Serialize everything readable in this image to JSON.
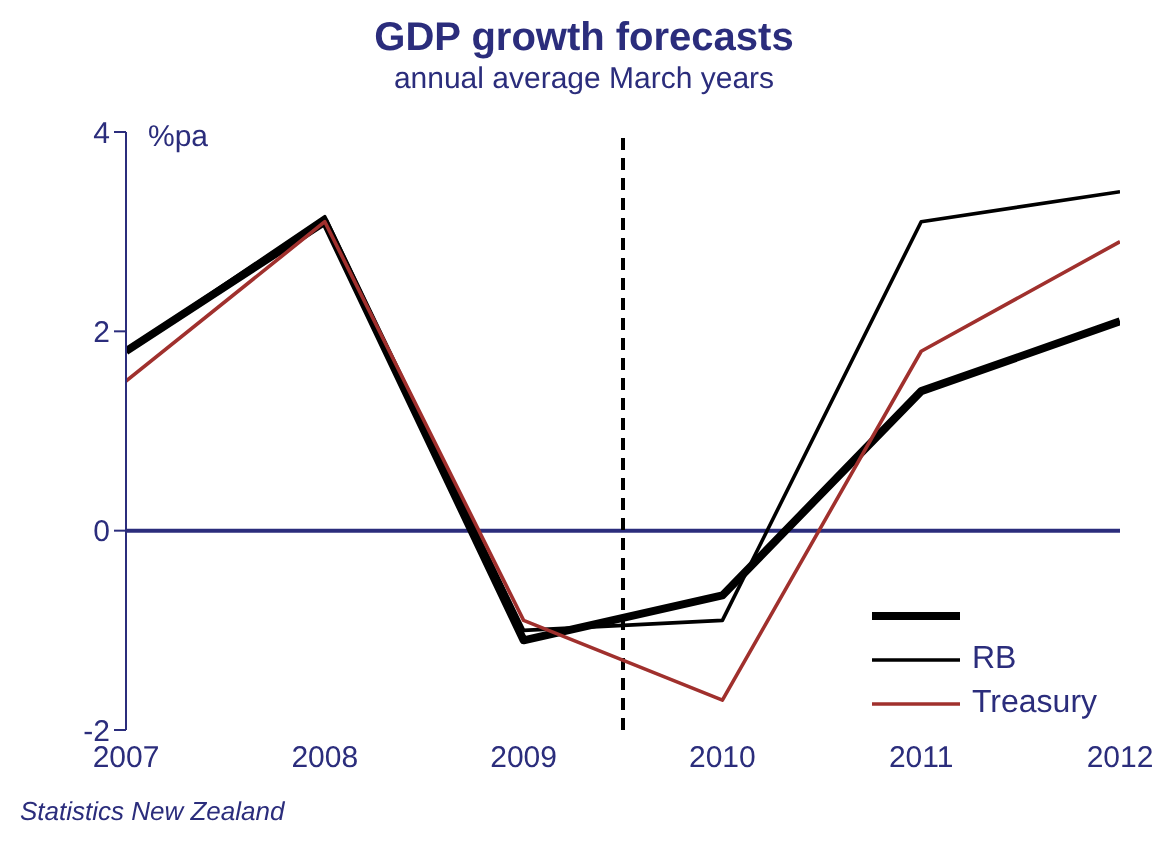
{
  "chart_data": {
    "type": "line",
    "title": "GDP growth forecasts",
    "subtitle": "annual average March years",
    "ylabel": "%pa",
    "annotations": [
      "Statistics New Zealand"
    ],
    "x": [
      2007,
      2008,
      2009,
      2010,
      2011,
      2012
    ],
    "xlim": [
      2007,
      2012
    ],
    "xticks": [
      2007,
      2008,
      2009,
      2010,
      2011,
      2012
    ],
    "ylim": [
      -2,
      4
    ],
    "yticks": [
      -2,
      0,
      2,
      4
    ],
    "grid": false,
    "legend": "bottom right",
    "marker": "none",
    "line_style": "solid",
    "ref_lines": [
      {
        "axis": "y",
        "value": 0,
        "color": "#2b2d7c",
        "line_style": "solid"
      },
      {
        "axis": "x",
        "value": 2009.5,
        "color": "#000000",
        "line_style": "dashed"
      }
    ],
    "series": [
      {
        "color": "#000000",
        "values": [
          1.8,
          3.1,
          -1.1,
          -0.65,
          1.4,
          2.1
        ]
      },
      {
        "name": "RB",
        "color": "#000000",
        "values": [
          1.8,
          3.15,
          -1.0,
          -0.9,
          3.1,
          3.4
        ]
      },
      {
        "name": "Treasury",
        "color": "#a0302d",
        "values": [
          1.5,
          3.1,
          -0.9,
          -1.7,
          1.8,
          2.9
        ]
      }
    ]
  }
}
